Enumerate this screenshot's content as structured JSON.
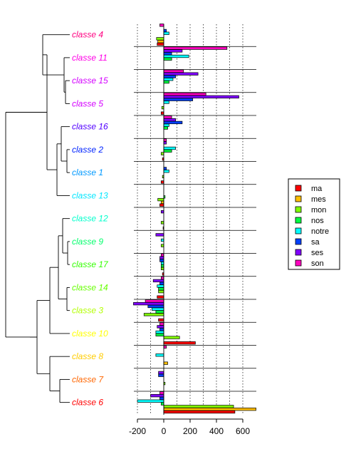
{
  "chart_data": {
    "type": "bar",
    "orientation": "horizontal",
    "x_ticks": [
      -200,
      0,
      200,
      400,
      600
    ],
    "xlim": [
      -235,
      705
    ],
    "grid": "vertical dotted lines every 100",
    "legend_position": "right",
    "series": [
      {
        "name": "ma",
        "color": "#FF0000"
      },
      {
        "name": "mes",
        "color": "#FFBF00"
      },
      {
        "name": "mon",
        "color": "#80FF00"
      },
      {
        "name": "nos",
        "color": "#00FF40"
      },
      {
        "name": "notre",
        "color": "#00FFFF"
      },
      {
        "name": "sa",
        "color": "#0040FF"
      },
      {
        "name": "ses",
        "color": "#8000FF"
      },
      {
        "name": "son",
        "color": "#FF00BF"
      }
    ],
    "classes": [
      {
        "label": "classe  4",
        "color": "#FF0080",
        "values": [
          -50,
          -45,
          -55,
          0,
          40,
          20,
          0,
          -30
        ]
      },
      {
        "label": "classe  11",
        "color": "#FF00E6",
        "values": [
          0,
          0,
          0,
          60,
          190,
          60,
          140,
          480
        ]
      },
      {
        "label": "classe  15",
        "color": "#D400FF",
        "values": [
          0,
          0,
          0,
          40,
          70,
          90,
          260,
          150
        ]
      },
      {
        "label": "classe  5",
        "color": "#D400FF",
        "values": [
          -20,
          0,
          -15,
          0,
          40,
          220,
          570,
          320
        ]
      },
      {
        "label": "classe  16",
        "color": "#5200FF",
        "values": [
          0,
          0,
          0,
          30,
          40,
          140,
          90,
          60
        ]
      },
      {
        "label": "classe  2",
        "color": "#0024FF",
        "values": [
          -10,
          0,
          -20,
          60,
          90,
          0,
          20,
          20
        ]
      },
      {
        "label": "classe  1",
        "color": "#0099FF",
        "values": [
          -20,
          0,
          -10,
          0,
          40,
          20,
          0,
          0
        ]
      },
      {
        "label": "classe  13",
        "color": "#00E6FF",
        "values": [
          -30,
          -20,
          -45,
          10,
          0,
          0,
          0,
          0
        ]
      },
      {
        "label": "classe  12",
        "color": "#00FFCC",
        "values": [
          -5,
          0,
          -20,
          0,
          0,
          0,
          -20,
          0
        ]
      },
      {
        "label": "classe  9",
        "color": "#00FF6B",
        "values": [
          0,
          0,
          -20,
          0,
          -20,
          0,
          -60,
          0
        ]
      },
      {
        "label": "classe  17",
        "color": "#33FF00",
        "values": [
          -10,
          0,
          -20,
          -20,
          -20,
          -30,
          -30,
          -20
        ]
      },
      {
        "label": "classe  14",
        "color": "#66FF00",
        "values": [
          -50,
          0,
          -40,
          -40,
          -50,
          -30,
          -80,
          -20
        ]
      },
      {
        "label": "classe  3",
        "color": "#B3FF00",
        "values": [
          -40,
          0,
          -150,
          -60,
          -90,
          -120,
          -230,
          -140
        ]
      },
      {
        "label": "classe  10",
        "color": "#FFFF00",
        "values": [
          240,
          0,
          120,
          -60,
          -60,
          -30,
          -50,
          -30
        ]
      },
      {
        "label": "classe  8",
        "color": "#FFCC00",
        "values": [
          0,
          30,
          0,
          0,
          -60,
          0,
          0,
          20
        ]
      },
      {
        "label": "classe  7",
        "color": "#FF6600",
        "values": [
          0,
          0,
          10,
          0,
          0,
          -40,
          -40,
          0
        ]
      },
      {
        "label": "classe  6",
        "color": "#FF0000",
        "values": [
          540,
          700,
          530,
          -20,
          -200,
          -30,
          -100,
          -30
        ]
      }
    ]
  }
}
